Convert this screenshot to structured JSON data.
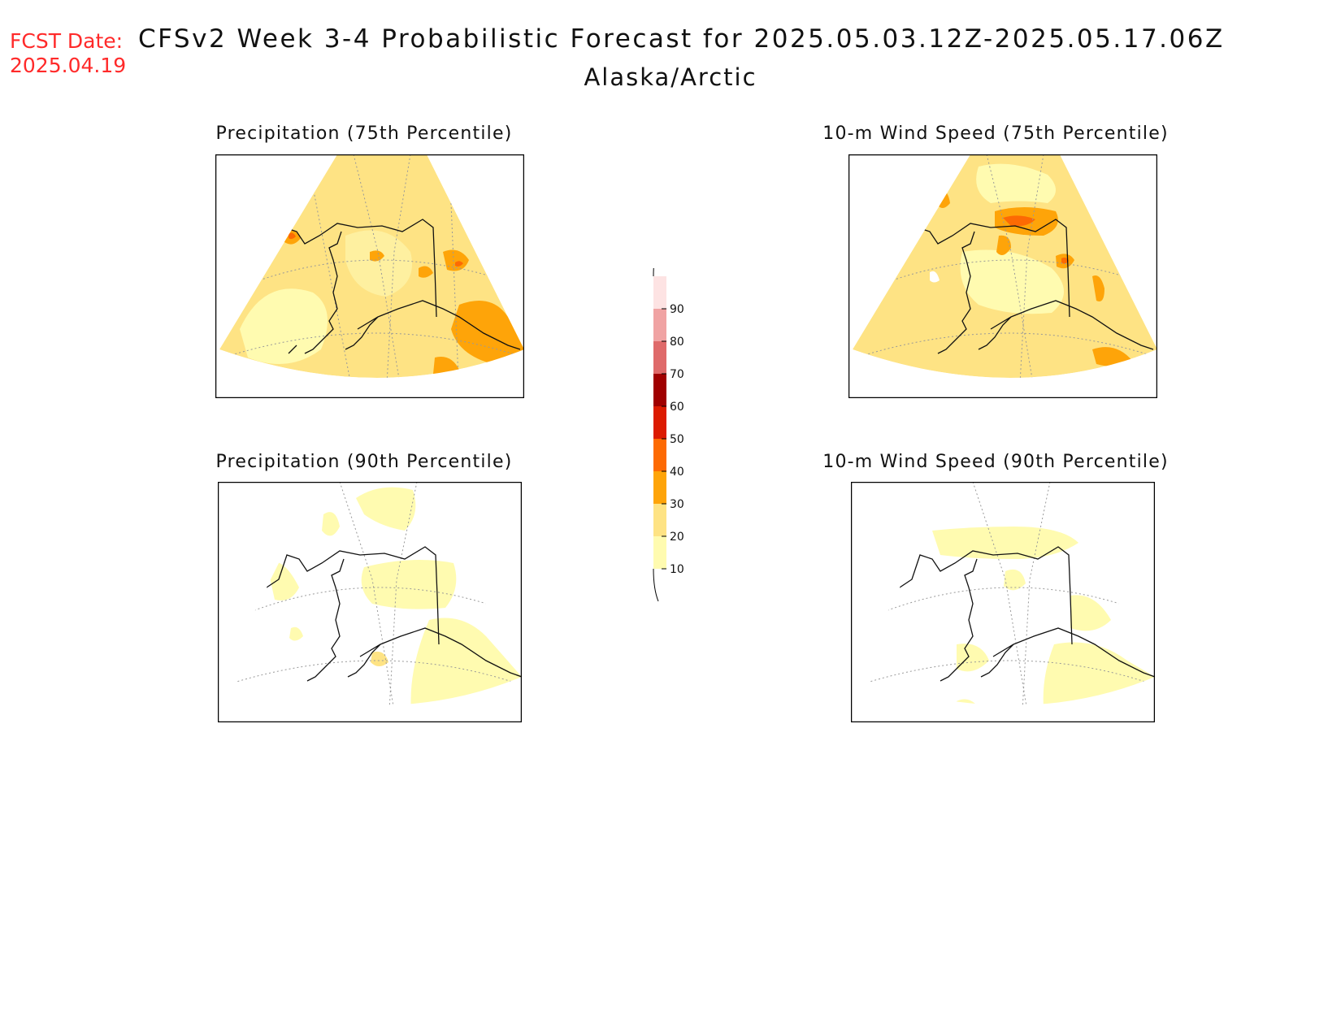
{
  "header": {
    "fcst_label": "FCST Date:",
    "fcst_date": "2025.04.19",
    "title": "CFSv2 Week 3-4 Probabilistic Forecast for 2025.05.03.12Z-2025.05.17.06Z",
    "region": "Alaska/Arctic"
  },
  "panels": [
    {
      "title": "Precipitation (75th Percentile)",
      "dominant_class": "20-30"
    },
    {
      "title": "10-m Wind Speed (75th Percentile)",
      "dominant_class": "20-30"
    },
    {
      "title": "Precipitation (90th Percentile)",
      "dominant_class": "<10"
    },
    {
      "title": "10-m Wind Speed (90th Percentile)",
      "dominant_class": "<10"
    }
  ],
  "colorbar": {
    "levels": [
      "10",
      "20",
      "30",
      "40",
      "50",
      "60",
      "70",
      "80",
      "90"
    ],
    "colors": [
      "#fffbb0",
      "#fee384",
      "#fea409",
      "#fd6a03",
      "#dc1b00",
      "#a00000",
      "#df6a6a",
      "#f0a3a3",
      "#fde3e3"
    ]
  }
}
